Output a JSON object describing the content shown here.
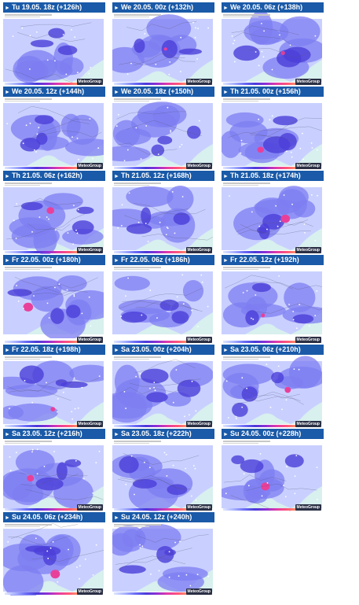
{
  "logo": "MeteoGroup",
  "arrow_glyph": "►",
  "panels": [
    {
      "label": "Tu 19.05. 18z (+126h)"
    },
    {
      "label": "We 20.05. 00z (+132h)"
    },
    {
      "label": "We 20.05. 06z (+138h)"
    },
    {
      "label": "We 20.05. 12z (+144h)"
    },
    {
      "label": "We 20.05. 18z (+150h)"
    },
    {
      "label": "Th 21.05. 00z (+156h)"
    },
    {
      "label": "Th 21.05. 06z (+162h)"
    },
    {
      "label": "Th 21.05. 12z (+168h)"
    },
    {
      "label": "Th 21.05. 18z (+174h)"
    },
    {
      "label": "Fr 22.05. 00z (+180h)"
    },
    {
      "label": "Fr 22.05. 06z (+186h)"
    },
    {
      "label": "Fr 22.05. 12z (+192h)"
    },
    {
      "label": "Fr 22.05. 18z (+198h)"
    },
    {
      "label": "Sa 23.05. 00z (+204h)"
    },
    {
      "label": "Sa 23.05. 06z (+210h)"
    },
    {
      "label": "Sa 23.05. 12z (+216h)"
    },
    {
      "label": "Sa 23.05. 18z (+222h)"
    },
    {
      "label": "Su 24.05. 00z (+228h)"
    },
    {
      "label": "Su 24.05. 06z (+234h)"
    },
    {
      "label": "Su 24.05. 12z (+240h)"
    }
  ],
  "colors": {
    "header_bg": "#1a5aa8",
    "header_text": "#ffffff",
    "precip_light": "#c9d0ff",
    "precip_mid": "#7d7ef2",
    "precip_heavy": "#4b3fd8",
    "precip_max": "#e8409a",
    "sea": "#d8f0ee"
  }
}
